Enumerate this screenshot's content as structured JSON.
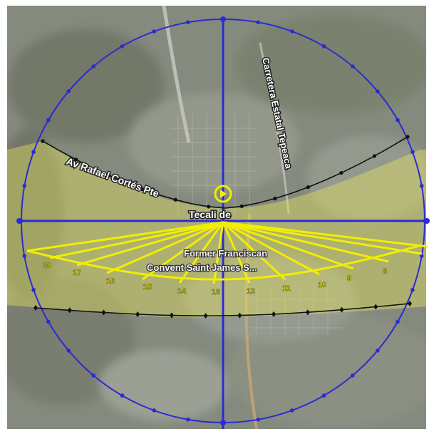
{
  "map": {
    "roads": {
      "av_rafael": "Av Rafael Cortés Pte",
      "carretera": "Carretera Estatal Tepeaca",
      "place_partial": "Tecali de"
    },
    "pois": {
      "former_convent": "Former Franciscan",
      "convent_line2": "Convent Saint James S..."
    }
  },
  "sun_path": {
    "hours": [
      "20",
      "17",
      "16",
      "15",
      "14",
      "13",
      "12",
      "11",
      "10",
      "9",
      "8"
    ],
    "colors": {
      "compass": "#2b2bd0",
      "summer_path": "#f2ee00",
      "winter_path": "#111111",
      "daylight_fill": "#e8e460",
      "location_pin": "#f2ee00"
    }
  }
}
